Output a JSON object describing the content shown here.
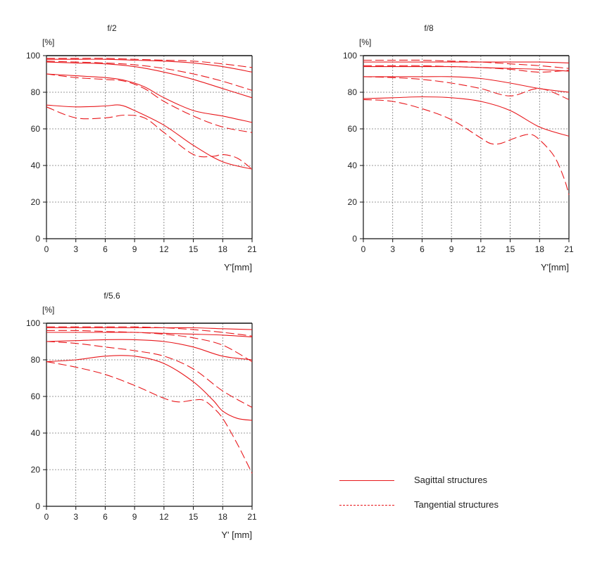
{
  "colors": {
    "curve": "#e8181c",
    "axis": "#111111",
    "grid": "#777777"
  },
  "legend": {
    "sagittal_label": "Sagittal structures",
    "tangential_label": "Tangential structures"
  },
  "chart_data": [
    {
      "type": "line",
      "title": "f/2",
      "ylabel": "[%]",
      "xlabel": "Y'[mm]",
      "xlim": [
        0,
        21
      ],
      "ylim": [
        0,
        100
      ],
      "xticks": [
        0,
        3,
        6,
        9,
        12,
        15,
        18,
        21
      ],
      "yticks": [
        0,
        20,
        40,
        60,
        80,
        100
      ],
      "grid": true,
      "series": [
        {
          "style": "solid",
          "points": [
            [
              0,
              98
            ],
            [
              3,
              98
            ],
            [
              6,
              98
            ],
            [
              9,
              97.5
            ],
            [
              12,
              97
            ],
            [
              15,
              96
            ],
            [
              18,
              94
            ],
            [
              21,
              91
            ]
          ]
        },
        {
          "style": "dashed",
          "points": [
            [
              0,
              98.5
            ],
            [
              3,
              98.5
            ],
            [
              6,
              98.5
            ],
            [
              9,
              98
            ],
            [
              12,
              97.5
            ],
            [
              15,
              97
            ],
            [
              18,
              95.5
            ],
            [
              21,
              93.5
            ]
          ]
        },
        {
          "style": "solid",
          "points": [
            [
              0,
              96.5
            ],
            [
              3,
              96
            ],
            [
              6,
              95.5
            ],
            [
              9,
              94
            ],
            [
              12,
              91
            ],
            [
              15,
              87
            ],
            [
              18,
              82
            ],
            [
              21,
              77
            ]
          ]
        },
        {
          "style": "dashed",
          "points": [
            [
              0,
              97
            ],
            [
              3,
              96.5
            ],
            [
              6,
              96
            ],
            [
              9,
              95
            ],
            [
              12,
              93
            ],
            [
              15,
              90
            ],
            [
              18,
              86
            ],
            [
              21,
              81
            ]
          ]
        },
        {
          "style": "solid",
          "points": [
            [
              0,
              90
            ],
            [
              3,
              89
            ],
            [
              6,
              88
            ],
            [
              8,
              86.5
            ],
            [
              10,
              83
            ],
            [
              12,
              77
            ],
            [
              15,
              70
            ],
            [
              18,
              67
            ],
            [
              21,
              63.5
            ]
          ]
        },
        {
          "style": "dashed",
          "points": [
            [
              0,
              90
            ],
            [
              3,
              88
            ],
            [
              6,
              87
            ],
            [
              8,
              86
            ],
            [
              10,
              82
            ],
            [
              12,
              75
            ],
            [
              15,
              67
            ],
            [
              18,
              61
            ],
            [
              21,
              58
            ]
          ]
        },
        {
          "style": "solid",
          "points": [
            [
              0,
              73
            ],
            [
              3,
              72
            ],
            [
              6,
              72.5
            ],
            [
              7.5,
              73
            ],
            [
              9,
              70
            ],
            [
              12,
              62
            ],
            [
              15,
              51
            ],
            [
              18,
              42
            ],
            [
              21,
              38
            ]
          ]
        },
        {
          "style": "dashed",
          "points": [
            [
              0,
              72
            ],
            [
              3,
              66
            ],
            [
              6,
              66
            ],
            [
              8,
              67.5
            ],
            [
              10,
              66
            ],
            [
              12,
              58
            ],
            [
              15,
              46
            ],
            [
              17,
              45
            ],
            [
              18,
              46
            ],
            [
              19.5,
              44
            ],
            [
              21,
              38
            ]
          ]
        }
      ]
    },
    {
      "type": "line",
      "title": "f/8",
      "ylabel": "[%]",
      "xlabel": "Y'[mm]",
      "xlim": [
        0,
        21
      ],
      "ylim": [
        0,
        100
      ],
      "xticks": [
        0,
        3,
        6,
        9,
        12,
        15,
        18,
        21
      ],
      "yticks": [
        0,
        20,
        40,
        60,
        80,
        100
      ],
      "grid": true,
      "series": [
        {
          "style": "solid",
          "points": [
            [
              0,
              96.5
            ],
            [
              3,
              96.5
            ],
            [
              6,
              96.5
            ],
            [
              9,
              96.5
            ],
            [
              12,
              96.5
            ],
            [
              15,
              96.5
            ],
            [
              18,
              96.5
            ],
            [
              21,
              96
            ]
          ]
        },
        {
          "style": "dashed",
          "points": [
            [
              0,
              97.5
            ],
            [
              3,
              97.5
            ],
            [
              6,
              97.5
            ],
            [
              9,
              97
            ],
            [
              12,
              96.5
            ],
            [
              15,
              95.5
            ],
            [
              18,
              94.5
            ],
            [
              21,
              93
            ]
          ]
        },
        {
          "style": "solid",
          "points": [
            [
              0,
              94
            ],
            [
              3,
              94
            ],
            [
              6,
              94
            ],
            [
              9,
              94
            ],
            [
              12,
              93.5
            ],
            [
              15,
              93
            ],
            [
              18,
              92.5
            ],
            [
              21,
              91.5
            ]
          ]
        },
        {
          "style": "dashed",
          "points": [
            [
              0,
              94.5
            ],
            [
              3,
              94.5
            ],
            [
              6,
              94.5
            ],
            [
              9,
              94
            ],
            [
              12,
              93.5
            ],
            [
              15,
              92.5
            ],
            [
              18,
              91
            ],
            [
              21,
              92
            ]
          ]
        },
        {
          "style": "solid",
          "points": [
            [
              0,
              88.5
            ],
            [
              3,
              88.5
            ],
            [
              6,
              88.5
            ],
            [
              9,
              88.5
            ],
            [
              12,
              87.5
            ],
            [
              15,
              85
            ],
            [
              18,
              82
            ],
            [
              21,
              80
            ]
          ]
        },
        {
          "style": "dashed",
          "points": [
            [
              0,
              88.5
            ],
            [
              3,
              88
            ],
            [
              6,
              87
            ],
            [
              9,
              85
            ],
            [
              12,
              82
            ],
            [
              15,
              78
            ],
            [
              18,
              82
            ],
            [
              21,
              76
            ]
          ]
        },
        {
          "style": "solid",
          "points": [
            [
              0,
              76.5
            ],
            [
              3,
              77
            ],
            [
              6,
              77.5
            ],
            [
              9,
              77
            ],
            [
              12,
              75
            ],
            [
              15,
              70
            ],
            [
              18,
              61
            ],
            [
              21,
              56
            ]
          ]
        },
        {
          "style": "dashed",
          "points": [
            [
              0,
              76
            ],
            [
              3,
              75
            ],
            [
              6,
              71
            ],
            [
              9,
              65
            ],
            [
              12,
              55
            ],
            [
              13,
              52
            ],
            [
              14,
              52
            ],
            [
              15.5,
              55
            ],
            [
              17,
              57
            ],
            [
              18,
              54
            ],
            [
              19.5,
              45
            ],
            [
              20.5,
              33
            ],
            [
              21,
              24
            ]
          ]
        }
      ]
    },
    {
      "type": "line",
      "title": "f/5.6",
      "ylabel": "[%]",
      "xlabel": "Y' [mm]",
      "xlim": [
        0,
        21
      ],
      "ylim": [
        0,
        100
      ],
      "xticks": [
        0,
        3,
        6,
        9,
        12,
        15,
        18,
        21
      ],
      "yticks": [
        0,
        20,
        40,
        60,
        80,
        100
      ],
      "grid": true,
      "series": [
        {
          "style": "solid",
          "points": [
            [
              0,
              97.5
            ],
            [
              3,
              97.5
            ],
            [
              6,
              97.5
            ],
            [
              9,
              97.5
            ],
            [
              12,
              97.5
            ],
            [
              15,
              97.5
            ],
            [
              18,
              97
            ],
            [
              21,
              96.5
            ]
          ]
        },
        {
          "style": "dashed",
          "points": [
            [
              0,
              98
            ],
            [
              3,
              98
            ],
            [
              6,
              98
            ],
            [
              9,
              98
            ],
            [
              12,
              97.5
            ],
            [
              15,
              96.5
            ],
            [
              18,
              95
            ],
            [
              21,
              93
            ]
          ]
        },
        {
          "style": "solid",
          "points": [
            [
              0,
              95
            ],
            [
              3,
              95
            ],
            [
              6,
              95
            ],
            [
              9,
              95
            ],
            [
              12,
              94.5
            ],
            [
              15,
              94
            ],
            [
              18,
              93.5
            ],
            [
              21,
              92.5
            ]
          ]
        },
        {
          "style": "dashed",
          "points": [
            [
              0,
              96
            ],
            [
              3,
              96
            ],
            [
              6,
              95.5
            ],
            [
              9,
              95
            ],
            [
              12,
              94
            ],
            [
              15,
              92
            ],
            [
              18,
              88
            ],
            [
              21,
              79
            ]
          ]
        },
        {
          "style": "solid",
          "points": [
            [
              0,
              90
            ],
            [
              3,
              90.5
            ],
            [
              6,
              91
            ],
            [
              9,
              91
            ],
            [
              12,
              90
            ],
            [
              15,
              87
            ],
            [
              18,
              82
            ],
            [
              21,
              80
            ]
          ]
        },
        {
          "style": "dashed",
          "points": [
            [
              0,
              90
            ],
            [
              3,
              89
            ],
            [
              6,
              87
            ],
            [
              9,
              85
            ],
            [
              12,
              82
            ],
            [
              15,
              75
            ],
            [
              18,
              63
            ],
            [
              21,
              54
            ]
          ]
        },
        {
          "style": "solid",
          "points": [
            [
              0,
              79
            ],
            [
              3,
              80
            ],
            [
              6,
              82
            ],
            [
              9,
              82
            ],
            [
              12,
              78
            ],
            [
              15,
              68
            ],
            [
              17,
              58
            ],
            [
              18,
              52
            ],
            [
              19.5,
              48
            ],
            [
              21,
              47
            ]
          ]
        },
        {
          "style": "dashed",
          "points": [
            [
              0,
              79
            ],
            [
              3,
              76
            ],
            [
              6,
              72
            ],
            [
              9,
              66
            ],
            [
              12,
              59
            ],
            [
              13.5,
              57
            ],
            [
              15,
              58
            ],
            [
              16,
              58
            ],
            [
              17,
              54
            ],
            [
              18,
              48
            ],
            [
              19.5,
              34
            ],
            [
              21,
              18
            ]
          ]
        }
      ]
    }
  ]
}
